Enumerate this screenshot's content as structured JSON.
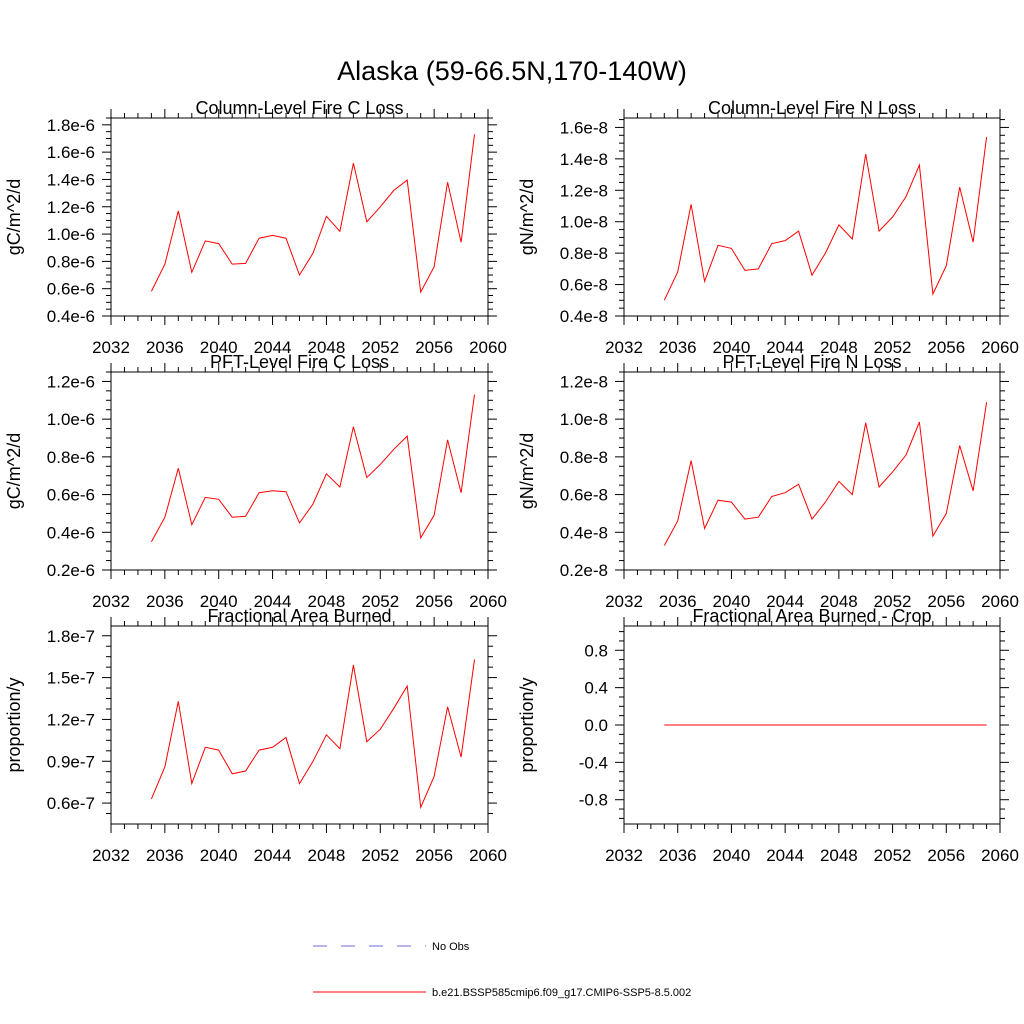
{
  "page_title": "Alaska (59-66.5N,170-140W)",
  "colors": {
    "model_line": "#ff0000",
    "obs_line": "#6b6bd6",
    "axis": "#000000"
  },
  "legend": {
    "entries": [
      {
        "label": "No Obs",
        "style": "dashed",
        "color": "#6b6bd6"
      },
      {
        "label": "b.e21.BSSP585cmip6.f09_g17.CMIP6-SSP5-8.5.002",
        "style": "solid",
        "color": "#ff0000"
      }
    ]
  },
  "chart_data": [
    {
      "type": "line",
      "title": "Column-Level Fire C Loss",
      "ylabel": "gC/m^2/d",
      "xlim": [
        2032,
        2060
      ],
      "ylim": [
        4e-07,
        1.85e-06
      ],
      "xticks": [
        2032,
        2036,
        2040,
        2044,
        2048,
        2052,
        2056,
        2060
      ],
      "yticks": [
        4e-07,
        6e-07,
        8e-07,
        1e-06,
        1.2e-06,
        1.4e-06,
        1.6e-06,
        1.8e-06
      ],
      "yticklabels": [
        "0.4e-6",
        "0.6e-6",
        "0.8e-6",
        "1.0e-6",
        "1.2e-6",
        "1.4e-6",
        "1.6e-6",
        "1.8e-6"
      ],
      "x": [
        2035,
        2036,
        2037,
        2038,
        2039,
        2040,
        2041,
        2042,
        2043,
        2044,
        2045,
        2046,
        2047,
        2048,
        2049,
        2050,
        2051,
        2052,
        2053,
        2054,
        2055,
        2056,
        2057,
        2058,
        2059
      ],
      "series": [
        {
          "values": [
            5.8e-07,
            7.8e-07,
            1.17e-06,
            7.2e-07,
            9.5e-07,
            9.3e-07,
            7.8e-07,
            7.85e-07,
            9.7e-07,
            9.9e-07,
            9.7e-07,
            7e-07,
            8.6e-07,
            1.13e-06,
            1.02e-06,
            1.52e-06,
            1.09e-06,
            1.2e-06,
            1.32e-06,
            1.395e-06,
            5.75e-07,
            7.6e-07,
            1.38e-06,
            9.4e-07,
            1.73e-06
          ]
        }
      ]
    },
    {
      "type": "line",
      "title": "Column-Level Fire N Loss",
      "ylabel": "gN/m^2/d",
      "xlim": [
        2032,
        2060
      ],
      "ylim": [
        4e-09,
        1.66e-08
      ],
      "xticks": [
        2032,
        2036,
        2040,
        2044,
        2048,
        2052,
        2056,
        2060
      ],
      "yticks": [
        4e-09,
        6e-09,
        8e-09,
        1e-08,
        1.2e-08,
        1.4e-08,
        1.6e-08
      ],
      "yticklabels": [
        "0.4e-8",
        "0.6e-8",
        "0.8e-8",
        "1.0e-8",
        "1.2e-8",
        "1.4e-8",
        "1.6e-8"
      ],
      "x": [
        2035,
        2036,
        2037,
        2038,
        2039,
        2040,
        2041,
        2042,
        2043,
        2044,
        2045,
        2046,
        2047,
        2048,
        2049,
        2050,
        2051,
        2052,
        2053,
        2054,
        2055,
        2056,
        2057,
        2058,
        2059
      ],
      "series": [
        {
          "values": [
            5e-09,
            6.8e-09,
            1.11e-08,
            6.2e-09,
            8.5e-09,
            8.3e-09,
            6.9e-09,
            7e-09,
            8.6e-09,
            8.8e-09,
            9.4e-09,
            6.6e-09,
            8e-09,
            9.8e-09,
            8.9e-09,
            1.43e-08,
            9.4e-09,
            1.03e-08,
            1.16e-08,
            1.36e-08,
            5.4e-09,
            7.2e-09,
            1.22e-08,
            8.7e-09,
            1.54e-08
          ]
        }
      ]
    },
    {
      "type": "line",
      "title": "PFT-Level Fire C Loss",
      "ylabel": "gC/m^2/d",
      "xlim": [
        2032,
        2060
      ],
      "ylim": [
        2e-07,
        1.25e-06
      ],
      "xticks": [
        2032,
        2036,
        2040,
        2044,
        2048,
        2052,
        2056,
        2060
      ],
      "yticks": [
        2e-07,
        4e-07,
        6e-07,
        8e-07,
        1e-06,
        1.2e-06
      ],
      "yticklabels": [
        "0.2e-6",
        "0.4e-6",
        "0.6e-6",
        "0.8e-6",
        "1.0e-6",
        "1.2e-6"
      ],
      "x": [
        2035,
        2036,
        2037,
        2038,
        2039,
        2040,
        2041,
        2042,
        2043,
        2044,
        2045,
        2046,
        2047,
        2048,
        2049,
        2050,
        2051,
        2052,
        2053,
        2054,
        2055,
        2056,
        2057,
        2058,
        2059
      ],
      "series": [
        {
          "values": [
            3.5e-07,
            4.8e-07,
            7.4e-07,
            4.4e-07,
            5.85e-07,
            5.75e-07,
            4.8e-07,
            4.85e-07,
            6.1e-07,
            6.2e-07,
            6.15e-07,
            4.5e-07,
            5.5e-07,
            7.1e-07,
            6.4e-07,
            9.6e-07,
            6.9e-07,
            7.6e-07,
            8.4e-07,
            9.1e-07,
            3.7e-07,
            4.9e-07,
            8.9e-07,
            6.1e-07,
            1.13e-06
          ]
        }
      ]
    },
    {
      "type": "line",
      "title": "PFT-Level Fire N Loss",
      "ylabel": "gN/m^2/d",
      "xlim": [
        2032,
        2060
      ],
      "ylim": [
        2e-09,
        1.25e-08
      ],
      "xticks": [
        2032,
        2036,
        2040,
        2044,
        2048,
        2052,
        2056,
        2060
      ],
      "yticks": [
        2e-09,
        4e-09,
        6e-09,
        8e-09,
        1e-08,
        1.2e-08
      ],
      "yticklabels": [
        "0.2e-8",
        "0.4e-8",
        "0.6e-8",
        "0.8e-8",
        "1.0e-8",
        "1.2e-8"
      ],
      "x": [
        2035,
        2036,
        2037,
        2038,
        2039,
        2040,
        2041,
        2042,
        2043,
        2044,
        2045,
        2046,
        2047,
        2048,
        2049,
        2050,
        2051,
        2052,
        2053,
        2054,
        2055,
        2056,
        2057,
        2058,
        2059
      ],
      "series": [
        {
          "values": [
            3.3e-09,
            4.6e-09,
            7.8e-09,
            4.2e-09,
            5.7e-09,
            5.6e-09,
            4.7e-09,
            4.8e-09,
            5.9e-09,
            6.1e-09,
            6.55e-09,
            4.7e-09,
            5.6e-09,
            6.7e-09,
            6e-09,
            9.8e-09,
            6.4e-09,
            7.2e-09,
            8.1e-09,
            9.85e-09,
            3.8e-09,
            5e-09,
            8.6e-09,
            6.2e-09,
            1.09e-08
          ]
        }
      ]
    },
    {
      "type": "line",
      "title": "Fractional Area Burned",
      "ylabel": "proportion/y",
      "xlim": [
        2032,
        2060
      ],
      "ylim": [
        4.5e-08,
        1.87e-07
      ],
      "xticks": [
        2032,
        2036,
        2040,
        2044,
        2048,
        2052,
        2056,
        2060
      ],
      "yticks": [
        6e-08,
        9e-08,
        1.2e-07,
        1.5e-07,
        1.8e-07
      ],
      "yticklabels": [
        "0.6e-7",
        "0.9e-7",
        "1.2e-7",
        "1.5e-7",
        "1.8e-7"
      ],
      "x": [
        2035,
        2036,
        2037,
        2038,
        2039,
        2040,
        2041,
        2042,
        2043,
        2044,
        2045,
        2046,
        2047,
        2048,
        2049,
        2050,
        2051,
        2052,
        2053,
        2054,
        2055,
        2056,
        2057,
        2058,
        2059
      ],
      "series": [
        {
          "values": [
            6.3e-08,
            8.6e-08,
            1.33e-07,
            7.4e-08,
            1e-07,
            9.8e-08,
            8.1e-08,
            8.3e-08,
            9.8e-08,
            1e-07,
            1.07e-07,
            7.4e-08,
            9e-08,
            1.09e-07,
            9.9e-08,
            1.59e-07,
            1.04e-07,
            1.13e-07,
            1.28e-07,
            1.44e-07,
            5.7e-08,
            7.9e-08,
            1.29e-07,
            9.3e-08,
            1.63e-07
          ]
        }
      ]
    },
    {
      "type": "line",
      "title": "Fractional Area Burned - Crop",
      "ylabel": "proportion/y",
      "xlim": [
        2032,
        2060
      ],
      "ylim": [
        -1.06,
        1.06
      ],
      "xticks": [
        2032,
        2036,
        2040,
        2044,
        2048,
        2052,
        2056,
        2060
      ],
      "yticks": [
        -0.8,
        -0.4,
        0.0,
        0.4,
        0.8
      ],
      "yticklabels": [
        "-0.8",
        "-0.4",
        "0.0",
        "0.4",
        "0.8"
      ],
      "x": [
        2035,
        2059
      ],
      "series": [
        {
          "values": [
            0,
            0
          ]
        }
      ]
    }
  ]
}
